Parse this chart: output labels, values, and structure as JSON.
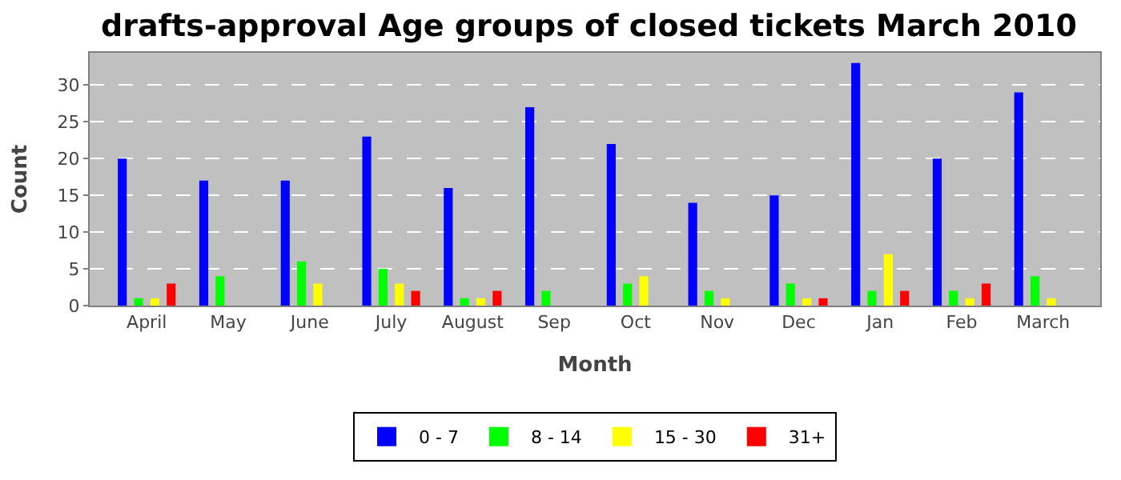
{
  "chart_data": {
    "type": "bar",
    "title": "drafts-approval Age groups of closed tickets March 2010",
    "xlabel": "Month",
    "ylabel": "Count",
    "categories": [
      "April",
      "May",
      "June",
      "July",
      "August",
      "Sep",
      "Oct",
      "Nov",
      "Dec",
      "Jan",
      "Feb",
      "March"
    ],
    "series": [
      {
        "name": "0 - 7",
        "color": "#0000ff",
        "values": [
          20,
          17,
          17,
          23,
          16,
          27,
          22,
          14,
          15,
          33,
          20,
          29
        ]
      },
      {
        "name": "8 - 14",
        "color": "#00ff00",
        "values": [
          1,
          4,
          6,
          5,
          1,
          2,
          3,
          2,
          3,
          2,
          2,
          4
        ]
      },
      {
        "name": "15 - 30",
        "color": "#ffff00",
        "values": [
          1,
          0,
          3,
          3,
          1,
          0,
          4,
          1,
          1,
          7,
          1,
          1
        ]
      },
      {
        "name": "31+",
        "color": "#ff0000",
        "values": [
          3,
          0,
          0,
          2,
          2,
          0,
          0,
          0,
          1,
          2,
          3,
          0
        ]
      }
    ],
    "ylim": [
      0,
      34.4
    ],
    "yticks": [
      0,
      5,
      10,
      15,
      20,
      25,
      30
    ],
    "grid": "y",
    "legend": "bottom"
  }
}
